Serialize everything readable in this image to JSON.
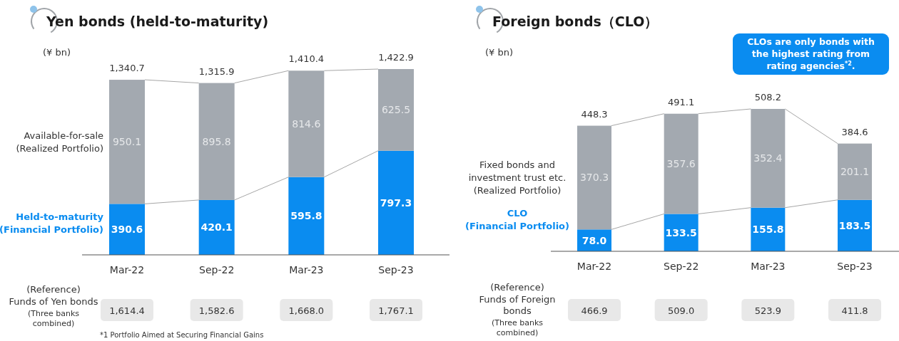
{
  "chart_data": [
    {
      "type": "bar",
      "title": "Yen bonds (held-to-maturity)",
      "ylabel": "(¥ bn)",
      "stacked": true,
      "categories": [
        "Mar-22",
        "Sep-22",
        "Mar-23",
        "Sep-23"
      ],
      "series": [
        {
          "name": "Held-to-maturity\n(Financial Portfolio)",
          "color": "#0a8cf0",
          "values": [
            390.6,
            420.1,
            595.8,
            797.3
          ],
          "value_labels": [
            "390.6",
            "420.1",
            "595.8",
            "797.3"
          ]
        },
        {
          "name": "Available-for-sale\n(Realized Portfolio)",
          "color": "#a3a9b0",
          "values": [
            950.1,
            895.8,
            814.6,
            625.5
          ],
          "value_labels": [
            "950.1",
            "895.8",
            "814.6",
            "625.5"
          ]
        }
      ],
      "totals": [
        "1,340.7",
        "1,315.9",
        "1,410.4",
        "1,422.9"
      ],
      "annotations": [
        "(Reference)\nFunds of Yen bonds",
        "(Three banks\ncombined)",
        "1,614.4",
        "1,582.6",
        "1,668.0",
        "1,767.1",
        "*1 Portfolio Aimed at Securing Financial Gains"
      ]
    },
    {
      "type": "bar",
      "title": "Foreign bonds（CLO）",
      "ylabel": "(¥ bn)",
      "stacked": true,
      "categories": [
        "Mar-22",
        "Sep-22",
        "Mar-23",
        "Sep-23"
      ],
      "series": [
        {
          "name": "CLO\n(Financial Portfolio)",
          "color": "#0a8cf0",
          "values": [
            78.0,
            133.5,
            155.8,
            183.5
          ],
          "value_labels": [
            "78.0",
            "133.5",
            "155.8",
            "183.5"
          ]
        },
        {
          "name": "Fixed bonds and\ninvestment trust etc.\n(Realized Portfolio)",
          "color": "#a3a9b0",
          "values": [
            370.3,
            357.6,
            352.4,
            201.1
          ],
          "value_labels": [
            "370.3",
            "357.6",
            "352.4",
            "201.1"
          ]
        }
      ],
      "totals": [
        "448.3",
        "491.1",
        "508.2",
        "384.6"
      ],
      "annotations": [
        "(Reference)\nFunds of Foreign\nbonds",
        "(Three banks\ncombined)",
        "466.9",
        "509.0",
        "523.9",
        "411.8",
        "CLOs are only bonds with\nthe highest rating from\nrating agencies$^{*2}$."
      ]
    }
  ]
}
